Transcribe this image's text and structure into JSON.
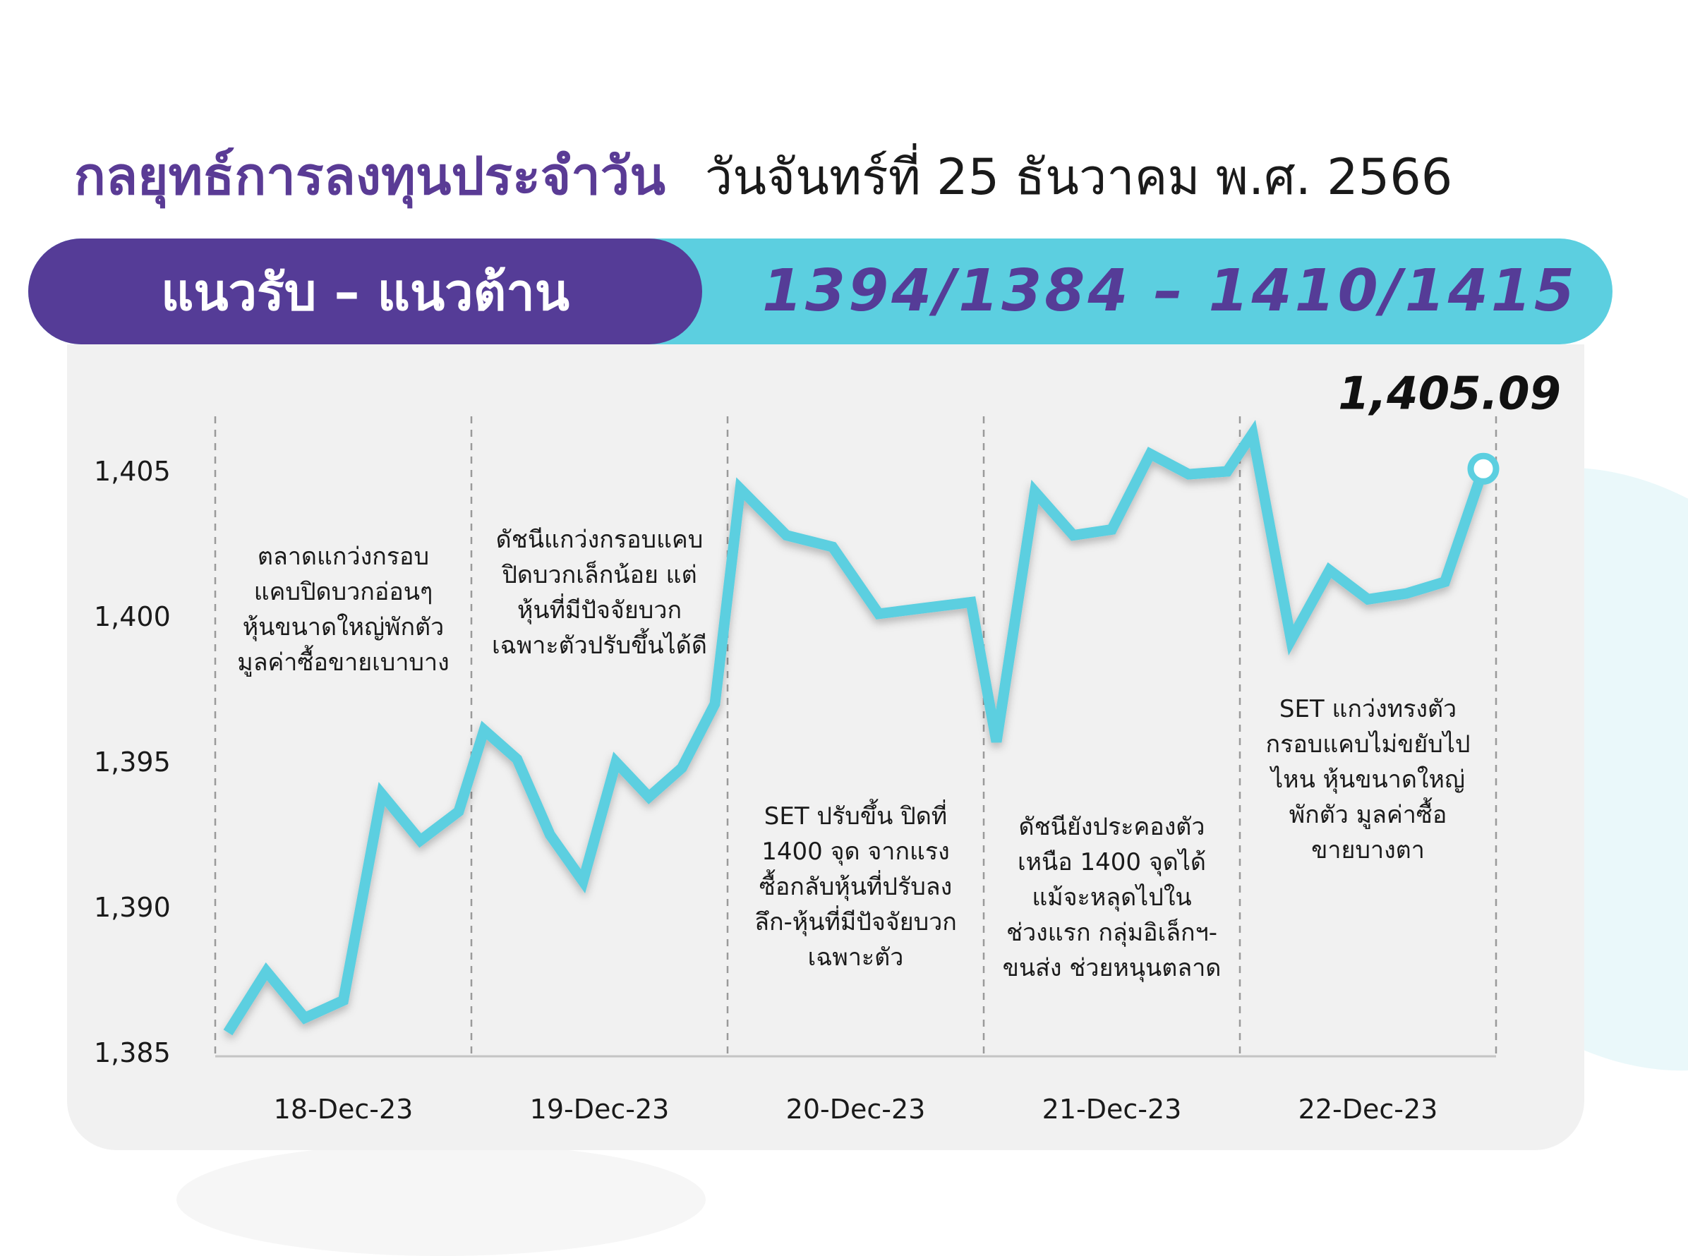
{
  "header": {
    "title": "กลยุทธ์การลงทุนประจำวัน",
    "date": "วันจันทร์ที่ 25 ธันวาคม พ.ศ. 2566"
  },
  "banner": {
    "label": "แนวรับ – แนวต้าน",
    "levels": "1394/1384 –  1410/1415"
  },
  "colors": {
    "purple": "#553c97",
    "cyan": "#5ccfe0",
    "line": "#5ccfe0"
  },
  "chart_data": {
    "type": "line",
    "ylim": [
      1385,
      1407
    ],
    "y_ticks": [
      "1,385",
      "1,390",
      "1,395",
      "1,400",
      "1,405"
    ],
    "y_tick_values": [
      1385,
      1390,
      1395,
      1400,
      1405
    ],
    "categories": [
      "18-Dec-23",
      "19-Dec-23",
      "20-Dec-23",
      "21-Dec-23",
      "22-Dec-23"
    ],
    "last_value_label": "1,405.09",
    "series": [
      {
        "values": [
          [
            1385.7,
            1387.8,
            1386.2,
            1386.8,
            1393.9,
            1392.3,
            1393.3
          ],
          [
            1396.1,
            1395.1,
            1392.5,
            1390.9,
            1395.0,
            1393.8,
            1394.8,
            1397.0
          ],
          [
            1404.4,
            1402.8,
            1402.4,
            1400.1,
            1400.3,
            1400.5
          ],
          [
            1395.7,
            1404.3,
            1402.8,
            1403.0,
            1405.6,
            1404.9,
            1405.0
          ],
          [
            1406.3,
            1399.2,
            1401.6,
            1400.6,
            1400.8,
            1401.2,
            1405.09
          ]
        ]
      }
    ],
    "annotations": [
      [
        "ตลาดแกว่งกรอบ",
        "แคบปิดบวกอ่อนๆ",
        "หุ้นขนาดใหญ่พักตัว",
        "มูลค่าซื้อขายเบาบาง"
      ],
      [
        "ดัชนีแกว่งกรอบแคบ",
        "ปิดบวกเล็กน้อย แต่",
        "หุ้นที่มีปัจจัยบวก",
        "เฉพาะตัวปรับขึ้นได้ดี"
      ],
      [
        "SET ปรับขึ้น ปิดที่",
        "1400 จุด จากแรง",
        "ซื้อกลับหุ้นที่ปรับลง",
        "ลึก-หุ้นที่มีปัจจัยบวก",
        "เฉพาะตัว"
      ],
      [
        "ดัชนียังประคองตัว",
        "เหนือ 1400 จุดได้",
        "แม้จะหลุดไปใน",
        "ช่วงแรก กลุ่มอิเล็กฯ-",
        "ขนส่ง ช่วยหนุนตลาด"
      ],
      [
        "SET แกว่งทรงตัว",
        "กรอบแคบไม่ขยับไป",
        "ไหน หุ้นขนาดใหญ่",
        "พักตัว มูลค่าซื้อ",
        "ขายบางตา"
      ]
    ]
  }
}
